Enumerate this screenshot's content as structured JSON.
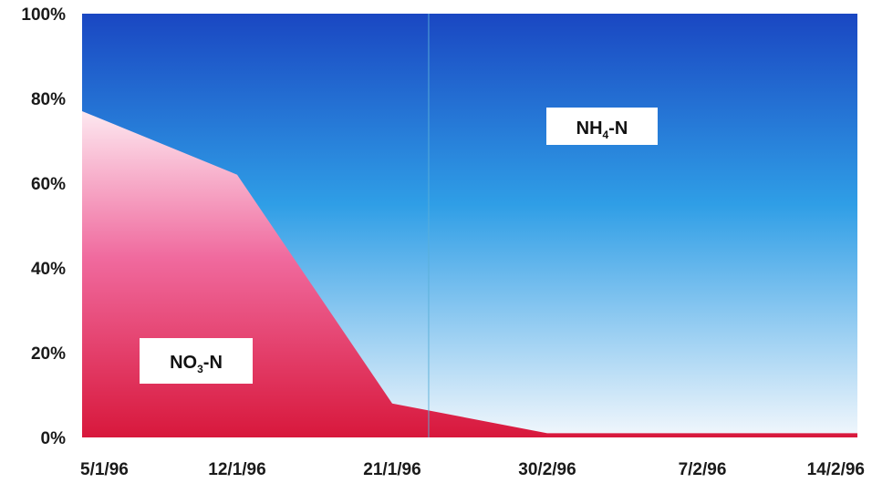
{
  "chart_data": {
    "type": "area",
    "stacked_percent": true,
    "categories": [
      "5/1/96",
      "12/1/96",
      "21/1/96",
      "30/2/96",
      "7/2/96",
      "14/2/96"
    ],
    "series": [
      {
        "name": "NO3-N",
        "values": [
          77,
          62,
          8,
          1,
          1,
          1
        ]
      },
      {
        "name": "NH4-N",
        "values": [
          23,
          38,
          92,
          99,
          99,
          99
        ]
      }
    ],
    "ylim": [
      0,
      100
    ],
    "yticks": [
      "0%",
      "20%",
      "40%",
      "60%",
      "80%",
      "100%"
    ],
    "grid": false,
    "legend": "none",
    "labels": [
      {
        "main": "NO",
        "sub": "3",
        "rest": "-N"
      },
      {
        "main": "NH",
        "sub": "4",
        "rest": "-N"
      }
    ],
    "colors": {
      "no3_top": "#fde8f0",
      "no3_mid": "#f06a9e",
      "no3_bottom": "#d8183c",
      "nh4_top": "#1a47c2",
      "nh4_mid": "#2f9ee6",
      "nh4_bottom": "#f2f7fc"
    }
  }
}
